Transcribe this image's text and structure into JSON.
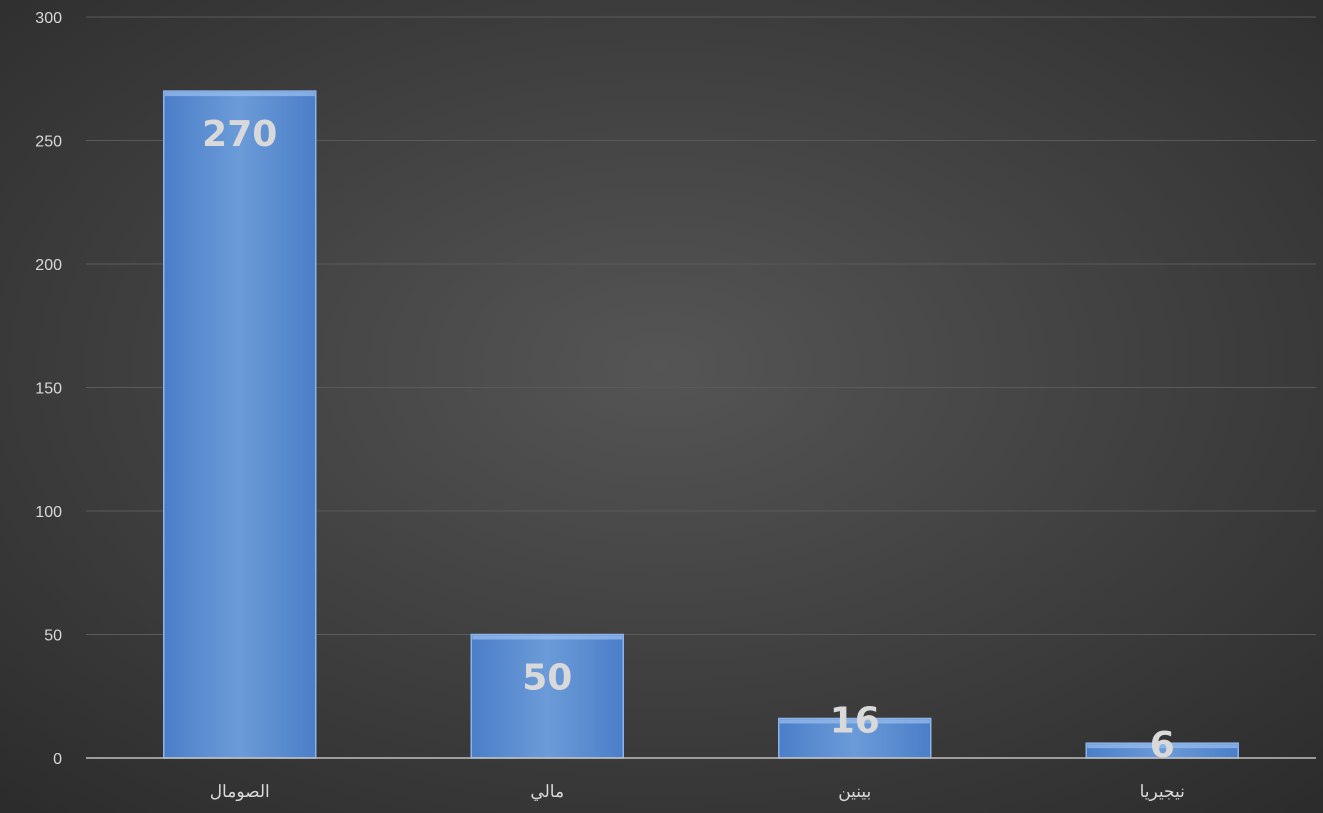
{
  "chart_data": {
    "type": "bar",
    "categories": [
      "الصومال",
      "مالي",
      "بينين",
      "نيجيريا"
    ],
    "values": [
      270,
      50,
      16,
      6
    ],
    "title": "",
    "xlabel": "",
    "ylabel": "",
    "ylim": [
      0,
      300
    ],
    "yticks": [
      0,
      50,
      100,
      150,
      200,
      250,
      300
    ],
    "grid": true,
    "data_labels": [
      "270",
      "50",
      "16",
      "6"
    ],
    "colors": {
      "bar": "#4a7ec8",
      "bar_highlight": "#6b9bd8",
      "background_center": "#555555",
      "background_edge": "#2b2b2b",
      "grid": "#5a5a5a",
      "axis": "#bfbfbf",
      "text": "#d9d9d9"
    }
  }
}
